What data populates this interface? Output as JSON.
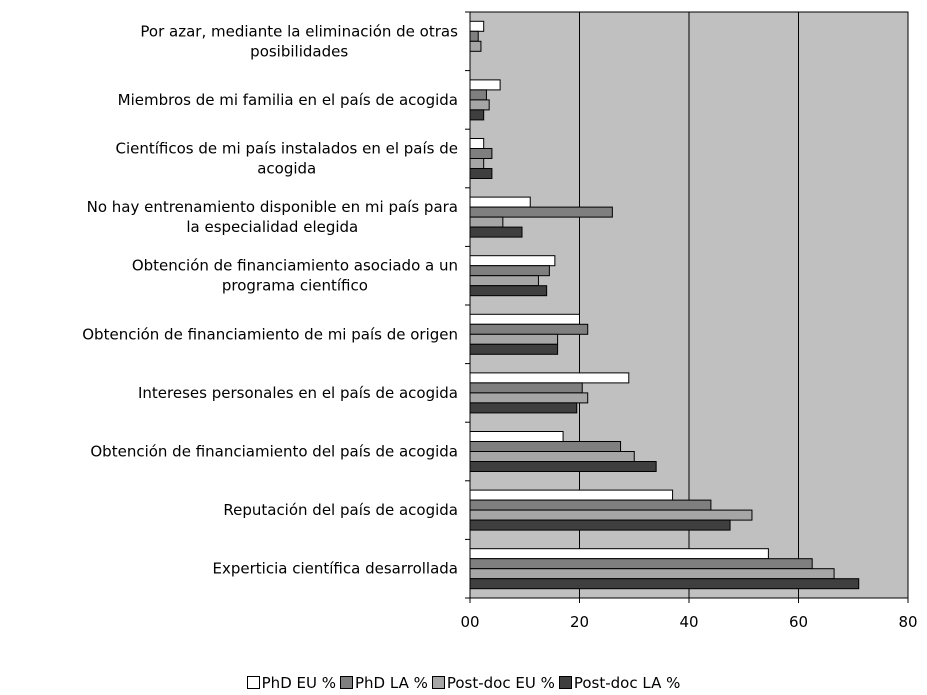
{
  "chart_data": {
    "type": "bar",
    "orientation": "horizontal",
    "categories": [
      [
        "Por azar, mediante la eliminación de otras",
        "posibilidades"
      ],
      [
        "Miembros de mi familia en el país de acogida"
      ],
      [
        "Científicos de mi país instalados en el país de",
        "acogida"
      ],
      [
        "No hay entrenamiento disponible en mi país para",
        "la especialidad elegida"
      ],
      [
        "Obtención de financiamiento asociado a un",
        "programa científico"
      ],
      [
        "Obtención de financiamiento de mi país de origen"
      ],
      [
        "Intereses personales en el país de acogida"
      ],
      [
        "Obtención de financiamiento del país de acogida"
      ],
      [
        "Reputación del país de acogida"
      ],
      [
        "Experticia científica desarrollada"
      ]
    ],
    "series": [
      {
        "name": "PhD EU %",
        "color": "#ffffff",
        "values": [
          2.5,
          5.5,
          2.5,
          11,
          15.5,
          20,
          29,
          17,
          37,
          54.5
        ]
      },
      {
        "name": "PhD LA %",
        "color": "#7f7f7f",
        "values": [
          1.5,
          3,
          4,
          26,
          14.5,
          21.5,
          20.5,
          27.5,
          44,
          62.5
        ]
      },
      {
        "name": "Post-doc EU %",
        "color": "#a6a6a6",
        "values": [
          2,
          3.5,
          2.5,
          6,
          12.5,
          16,
          21.5,
          30,
          51.5,
          66.5
        ]
      },
      {
        "name": "Post-doc LA %",
        "color": "#3f3f3f",
        "values": [
          0,
          2.5,
          4,
          9.5,
          14,
          16,
          19.5,
          34,
          47.5,
          71
        ]
      }
    ],
    "xlim": [
      0,
      80
    ],
    "xticks": [
      "00",
      "20",
      "40",
      "60",
      "80"
    ],
    "grid": true,
    "legend_position": "bottom",
    "plot_background": "#c0c0c0"
  }
}
